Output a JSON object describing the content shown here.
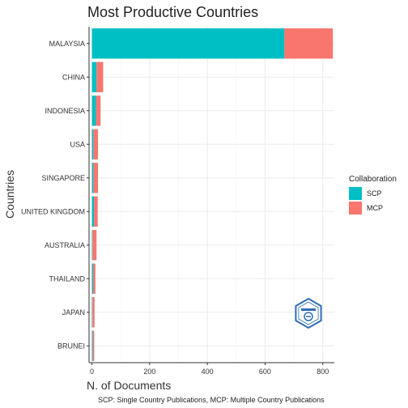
{
  "chart_data": {
    "type": "bar",
    "orientation": "horizontal",
    "stacked": true,
    "title": "Most Productive Countries",
    "xlabel": "N. of Documents",
    "ylabel": "Countries",
    "categories": [
      "MALAYSIA",
      "CHINA",
      "INDONESIA",
      "USA",
      "SINGAPORE",
      "UNITED KINGDOM",
      "AUSTRALIA",
      "THAILAND",
      "JAPAN",
      "BRUNEI"
    ],
    "series": [
      {
        "name": "SCP",
        "color": "#00BFC4",
        "values": [
          667,
          16,
          14,
          5,
          5,
          7,
          2,
          4,
          2,
          3
        ]
      },
      {
        "name": "MCP",
        "color": "#F8766D",
        "values": [
          168,
          23,
          16,
          16,
          16,
          13,
          14,
          8,
          7,
          5
        ]
      }
    ],
    "xlim": [
      -10,
      840
    ],
    "xticks": [
      0,
      200,
      400,
      600,
      800
    ],
    "grid": true,
    "legend": {
      "title": "Collaboration",
      "placement": "right",
      "entries": [
        "SCP",
        "MCP"
      ]
    },
    "caption": "SCP: Single Country Publications, MCP: Multiple Country Publications",
    "logo": {
      "type": "bibliometrix-hexagon",
      "placement": "bottom-right",
      "color": "#2E6DB4"
    }
  }
}
